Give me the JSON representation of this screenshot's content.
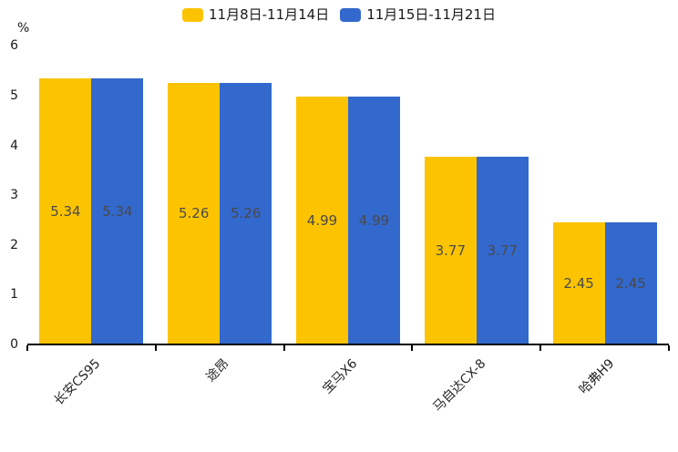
{
  "chart_data": {
    "type": "bar",
    "title": "",
    "unit": "%",
    "categories": [
      "长安CS95",
      "途昂",
      "宝马X6",
      "马自达CX-8",
      "哈弗H9"
    ],
    "series": [
      {
        "name": "11月8日-11月14日",
        "color": "#FCC400",
        "values": [
          5.34,
          5.26,
          4.99,
          3.77,
          2.45
        ]
      },
      {
        "name": "11月15日-11月21日",
        "color": "#3368CD",
        "values": [
          5.34,
          5.26,
          4.99,
          3.77,
          2.45
        ]
      }
    ],
    "ylim": [
      0,
      6
    ],
    "yticks": [
      0,
      1,
      2,
      3,
      4,
      5,
      6
    ],
    "grid": false,
    "legend_position": "top",
    "value_label_decimals": 2
  }
}
